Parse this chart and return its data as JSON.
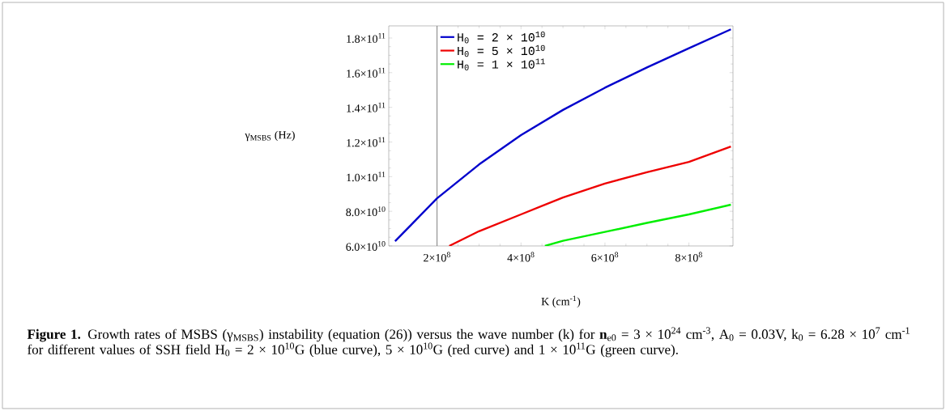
{
  "chart_data": {
    "type": "line",
    "xlabel": "K (cm$^{-1}$)",
    "ylabel": "γ$_{MSBS}$ (Hz)",
    "xlim": [
      85000000,
      905000000
    ],
    "ylim": [
      60000000000,
      187000000000
    ],
    "xticks": [
      {
        "value": 200000000,
        "label": "2×10$^{8}$"
      },
      {
        "value": 400000000,
        "label": "4×10$^{8}$"
      },
      {
        "value": 600000000,
        "label": "6×10$^{8}$"
      },
      {
        "value": 800000000,
        "label": "8×10$^{8}$"
      }
    ],
    "yticks": [
      {
        "value": 60000000000,
        "label": "6.0×10$^{10}$"
      },
      {
        "value": 80000000000,
        "label": "8.0×10$^{10}$"
      },
      {
        "value": 100000000000,
        "label": "1.0×10$^{11}$"
      },
      {
        "value": 120000000000,
        "label": "1.2×10$^{11}$"
      },
      {
        "value": 140000000000,
        "label": "1.4×10$^{11}$"
      },
      {
        "value": 160000000000,
        "label": "1.6×10$^{11}$"
      },
      {
        "value": 180000000000,
        "label": "1.8×10$^{11}$"
      }
    ],
    "grid": false,
    "legend": "top left",
    "marker": "none",
    "line_style": "solid",
    "ref_lines": [
      {
        "axis": "x",
        "value": 200000000,
        "color": "#808080"
      }
    ],
    "series": [
      {
        "name": "H$_{0}$ = 2 × 10$^{10}$",
        "color": "#0000cc",
        "x": [
          100000000,
          200000000,
          300000000,
          400000000,
          500000000,
          600000000,
          700000000,
          800000000,
          900000000
        ],
        "values": [
          62700000000,
          87500000000,
          107000000000,
          124000000000,
          138500000000,
          151300000000,
          163000000000,
          174100000000,
          185000000000
        ]
      },
      {
        "name": "H$_{0}$ = 5 × 10$^{10}$",
        "color": "#ee0000",
        "x": [
          229000000,
          300000000,
          400000000,
          500000000,
          600000000,
          700000000,
          800000000,
          900000000
        ],
        "values": [
          60000000000,
          68500000000,
          78200000000,
          88000000000,
          96000000000,
          102500000000,
          108500000000,
          117400000000
        ]
      },
      {
        "name": "H$_{0}$ = 1 × 10$^{11}$",
        "color": "#00ee00",
        "x": [
          457000000,
          500000000,
          600000000,
          700000000,
          800000000,
          900000000
        ],
        "values": [
          60000000000,
          63000000000,
          68100000000,
          73300000000,
          78200000000,
          83800000000
        ]
      }
    ],
    "annotations": [
      "**Figure 1.** Growth rates of MSBS (γ$_{MSBS}$) instability (equation (26)) versus the wave number (k) for **n**$_{e0}$ = 3 × 10$^{24}$ cm$^{-3}$, A$_{0}$ = 0.03V, k$_{0}$ = 6.28 × 10$^{7}$ cm$^{-1}$ for different values of SSH field H$_{0}$ = 2 × 10$^{10}$G (blue curve), 5 × 10$^{10}$G (red curve) and 1 × 10$^{11}$G (green curve)."
    ]
  }
}
